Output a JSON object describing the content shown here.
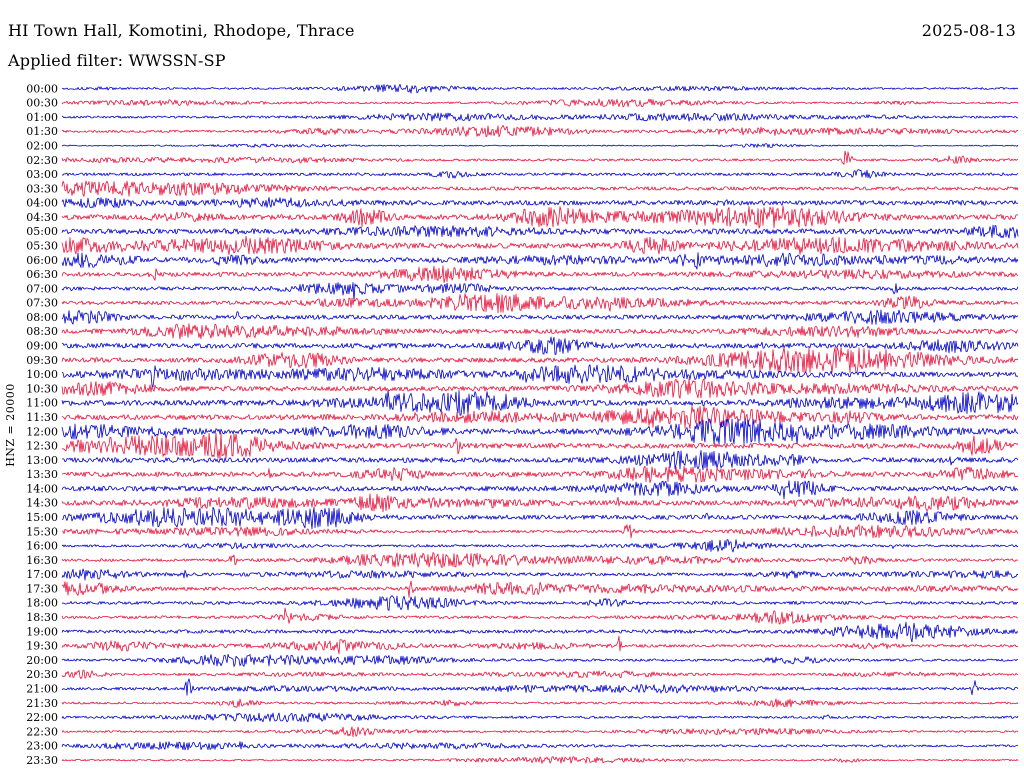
{
  "chart_data": {
    "type": "line",
    "chart_kind": "helicorder-seismogram",
    "title": "HI Town Hall, Komotini, Rhodope, Thrace",
    "date": "2025-08-13",
    "filter_label": "Applied filter: WWSSN-SP",
    "left_axis_label": "HNZ = 20000",
    "row_duration_minutes": 30,
    "grid": false,
    "legend": false,
    "background": "#ffffff",
    "trace_colors": {
      "even_rows": "#0000cc",
      "odd_rows": "#e8143c"
    },
    "rows": [
      {
        "time": "00:00",
        "color": "#0000cc",
        "amp": 0.9
      },
      {
        "time": "00:30",
        "color": "#e8143c",
        "amp": 0.8
      },
      {
        "time": "01:00",
        "color": "#0000cc",
        "amp": 1.0
      },
      {
        "time": "01:30",
        "color": "#e8143c",
        "amp": 1.1
      },
      {
        "time": "02:00",
        "color": "#0000cc",
        "amp": 0.5
      },
      {
        "time": "02:30",
        "color": "#e8143c",
        "amp": 1.1
      },
      {
        "time": "03:00",
        "color": "#0000cc",
        "amp": 1.3
      },
      {
        "time": "03:30",
        "color": "#e8143c",
        "amp": 1.6
      },
      {
        "time": "04:00",
        "color": "#0000cc",
        "amp": 2.2
      },
      {
        "time": "04:30",
        "color": "#e8143c",
        "amp": 2.3
      },
      {
        "time": "05:00",
        "color": "#0000cc",
        "amp": 2.4
      },
      {
        "time": "05:30",
        "color": "#e8143c",
        "amp": 2.4
      },
      {
        "time": "06:00",
        "color": "#0000cc",
        "amp": 2.2
      },
      {
        "time": "06:30",
        "color": "#e8143c",
        "amp": 2.0
      },
      {
        "time": "07:00",
        "color": "#0000cc",
        "amp": 1.6
      },
      {
        "time": "07:30",
        "color": "#e8143c",
        "amp": 1.7
      },
      {
        "time": "08:00",
        "color": "#0000cc",
        "amp": 2.0
      },
      {
        "time": "08:30",
        "color": "#e8143c",
        "amp": 2.1
      },
      {
        "time": "09:00",
        "color": "#0000cc",
        "amp": 2.2
      },
      {
        "time": "09:30",
        "color": "#e8143c",
        "amp": 2.2
      },
      {
        "time": "10:00",
        "color": "#0000cc",
        "amp": 2.3
      },
      {
        "time": "10:30",
        "color": "#e8143c",
        "amp": 2.3
      },
      {
        "time": "11:00",
        "color": "#0000cc",
        "amp": 2.4
      },
      {
        "time": "11:30",
        "color": "#e8143c",
        "amp": 2.4
      },
      {
        "time": "12:00",
        "color": "#0000cc",
        "amp": 2.4
      },
      {
        "time": "12:30",
        "color": "#e8143c",
        "amp": 2.3
      },
      {
        "time": "13:00",
        "color": "#0000cc",
        "amp": 2.3
      },
      {
        "time": "13:30",
        "color": "#e8143c",
        "amp": 2.2
      },
      {
        "time": "14:00",
        "color": "#0000cc",
        "amp": 2.3
      },
      {
        "time": "14:30",
        "color": "#e8143c",
        "amp": 2.2
      },
      {
        "time": "15:00",
        "color": "#0000cc",
        "amp": 2.0
      },
      {
        "time": "15:30",
        "color": "#e8143c",
        "amp": 1.2
      },
      {
        "time": "16:00",
        "color": "#0000cc",
        "amp": 1.1
      },
      {
        "time": "16:30",
        "color": "#e8143c",
        "amp": 1.3
      },
      {
        "time": "17:00",
        "color": "#0000cc",
        "amp": 1.4
      },
      {
        "time": "17:30",
        "color": "#e8143c",
        "amp": 1.5
      },
      {
        "time": "18:00",
        "color": "#0000cc",
        "amp": 1.4
      },
      {
        "time": "18:30",
        "color": "#e8143c",
        "amp": 1.3
      },
      {
        "time": "19:00",
        "color": "#0000cc",
        "amp": 1.6
      },
      {
        "time": "19:30",
        "color": "#e8143c",
        "amp": 1.2
      },
      {
        "time": "20:00",
        "color": "#0000cc",
        "amp": 1.1
      },
      {
        "time": "20:30",
        "color": "#e8143c",
        "amp": 1.0
      },
      {
        "time": "21:00",
        "color": "#0000cc",
        "amp": 1.2
      },
      {
        "time": "21:30",
        "color": "#e8143c",
        "amp": 1.0
      },
      {
        "time": "22:00",
        "color": "#0000cc",
        "amp": 1.1
      },
      {
        "time": "22:30",
        "color": "#e8143c",
        "amp": 0.9
      },
      {
        "time": "23:00",
        "color": "#0000cc",
        "amp": 1.0
      },
      {
        "time": "23:30",
        "color": "#e8143c",
        "amp": 0.8
      }
    ]
  }
}
